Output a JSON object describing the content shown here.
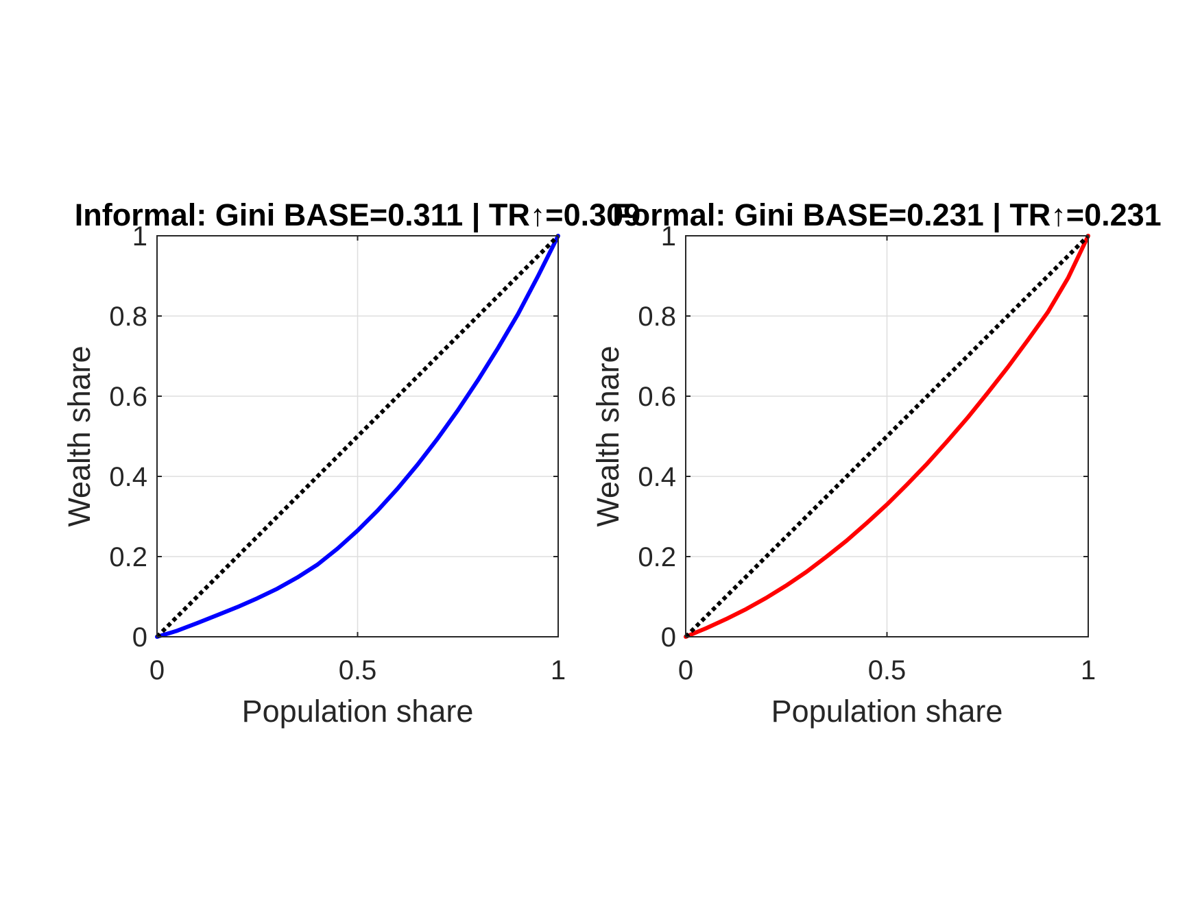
{
  "chart_data": [
    {
      "type": "line",
      "title": "Informal: Gini BASE=0.311 | TR↑=0.309",
      "xlabel": "Population share",
      "ylabel": "Wealth share",
      "xlim": [
        0,
        1
      ],
      "ylim": [
        0,
        1
      ],
      "xticks": [
        0,
        0.5,
        1
      ],
      "xtick_labels": [
        "0",
        "0.5",
        "1"
      ],
      "yticks": [
        0,
        0.2,
        0.4,
        0.6,
        0.8,
        1
      ],
      "ytick_labels": [
        "0",
        "0.2",
        "0.4",
        "0.6",
        "0.8",
        "1"
      ],
      "grid": true,
      "series": [
        {
          "style": "solid",
          "color": "#0000ff",
          "x": [
            0,
            0.05,
            0.1,
            0.15,
            0.2,
            0.25,
            0.3,
            0.35,
            0.4,
            0.45,
            0.5,
            0.55,
            0.6,
            0.65,
            0.7,
            0.75,
            0.8,
            0.85,
            0.9,
            0.95,
            1
          ],
          "y": [
            0,
            0.015,
            0.034,
            0.054,
            0.074,
            0.096,
            0.12,
            0.148,
            0.18,
            0.22,
            0.265,
            0.315,
            0.37,
            0.43,
            0.495,
            0.565,
            0.64,
            0.72,
            0.805,
            0.9,
            1
          ]
        },
        {
          "style": "dotted",
          "color": "#000000",
          "x": [
            0,
            1
          ],
          "y": [
            0,
            1
          ]
        }
      ]
    },
    {
      "type": "line",
      "title": "Formal: Gini BASE=0.231 | TR↑=0.231",
      "xlabel": "Population share",
      "ylabel": "Wealth share",
      "xlim": [
        0,
        1
      ],
      "ylim": [
        0,
        1
      ],
      "xticks": [
        0,
        0.5,
        1
      ],
      "xtick_labels": [
        "0",
        "0.5",
        "1"
      ],
      "yticks": [
        0,
        0.2,
        0.4,
        0.6,
        0.8,
        1
      ],
      "ytick_labels": [
        "0",
        "0.2",
        "0.4",
        "0.6",
        "0.8",
        "1"
      ],
      "grid": true,
      "series": [
        {
          "style": "solid",
          "color": "#ff0000",
          "x": [
            0,
            0.05,
            0.1,
            0.15,
            0.2,
            0.25,
            0.3,
            0.35,
            0.4,
            0.45,
            0.5,
            0.55,
            0.6,
            0.65,
            0.7,
            0.75,
            0.8,
            0.85,
            0.9,
            0.95,
            1
          ],
          "y": [
            0,
            0.021,
            0.044,
            0.069,
            0.097,
            0.128,
            0.162,
            0.2,
            0.24,
            0.284,
            0.33,
            0.38,
            0.432,
            0.488,
            0.546,
            0.608,
            0.672,
            0.74,
            0.81,
            0.895,
            1
          ]
        },
        {
          "style": "dotted",
          "color": "#000000",
          "x": [
            0,
            1
          ],
          "y": [
            0,
            1
          ]
        }
      ]
    }
  ]
}
